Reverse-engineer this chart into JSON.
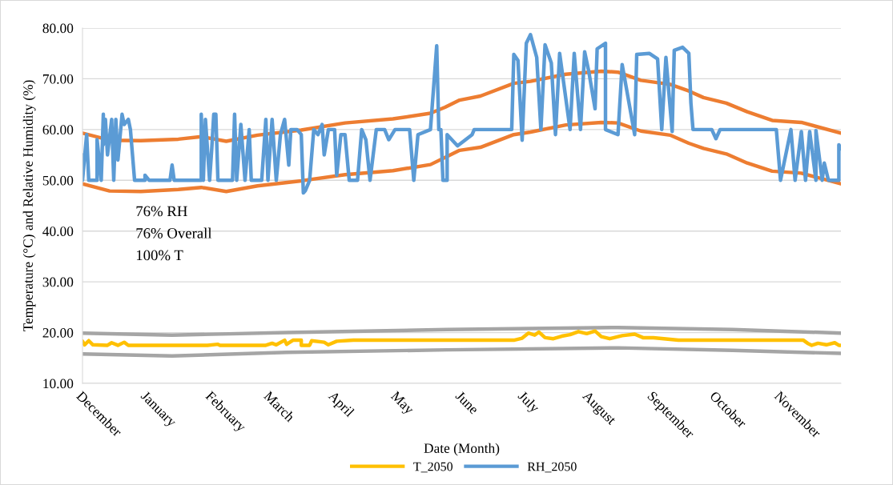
{
  "chart_data": {
    "type": "line",
    "xlabel": "Date (Month)",
    "ylabel": "Temperature (°C) and Relative Humidity (%)",
    "annotations": [
      "76% RH",
      "76% Overall",
      "100% T"
    ],
    "xlim": [
      "2049-12-01",
      "2050-11-30"
    ],
    "xticks": [
      {
        "value": "2049-12-01",
        "label": "December"
      },
      {
        "value": "2050-01-01",
        "label": "January"
      },
      {
        "value": "2050-02-01",
        "label": "February"
      },
      {
        "value": "2050-03-01",
        "label": "March"
      },
      {
        "value": "2050-04-01",
        "label": "April"
      },
      {
        "value": "2050-05-01",
        "label": "May"
      },
      {
        "value": "2050-06-01",
        "label": "June"
      },
      {
        "value": "2050-07-01",
        "label": "July"
      },
      {
        "value": "2050-08-01",
        "label": "August"
      },
      {
        "value": "2050-09-01",
        "label": "September"
      },
      {
        "value": "2050-10-01",
        "label": "October"
      },
      {
        "value": "2050-11-01",
        "label": "November"
      }
    ],
    "ylim": [
      10,
      80
    ],
    "yticks": [
      {
        "value": 10,
        "label": "10.00"
      },
      {
        "value": 20,
        "label": "20.00"
      },
      {
        "value": 30,
        "label": "30.00"
      },
      {
        "value": 40,
        "label": "40.00"
      },
      {
        "value": 50,
        "label": "50.00"
      },
      {
        "value": 60,
        "label": "60.00"
      },
      {
        "value": 70,
        "label": "70.00"
      },
      {
        "value": 80,
        "label": "80.00"
      }
    ],
    "grid": "y",
    "legend": "bottom",
    "marker": "none",
    "line_style": "solid",
    "series": [
      {
        "color": "#ed7d31",
        "x": [
          "2049-12-01",
          "2049-12-14",
          "2049-12-29",
          "2050-01-16",
          "2050-01-27",
          "2050-02-08",
          "2050-02-23",
          "2050-03-16",
          "2050-04-06",
          "2050-04-29",
          "2050-05-17",
          "2050-05-24",
          "2050-05-31",
          "2050-06-10",
          "2050-06-26",
          "2050-07-04",
          "2050-07-21",
          "2050-08-07",
          "2050-08-15",
          "2050-08-26",
          "2050-09-09",
          "2050-09-18",
          "2050-09-25",
          "2050-10-06",
          "2050-10-16",
          "2050-10-28",
          "2050-11-11",
          "2050-11-30"
        ],
        "values": [
          59.3,
          57.9,
          57.8,
          58.1,
          58.6,
          57.7,
          58.9,
          59.9,
          61.3,
          62.1,
          63.2,
          64.4,
          65.8,
          66.6,
          69.1,
          69.5,
          70.9,
          71.5,
          71.3,
          69.7,
          68.9,
          67.6,
          66.3,
          65.2,
          63.5,
          61.8,
          61.4,
          59.3
        ]
      },
      {
        "color": "#ed7d31",
        "x": [
          "2049-12-01",
          "2049-12-14",
          "2049-12-29",
          "2050-01-16",
          "2050-01-27",
          "2050-02-08",
          "2050-02-23",
          "2050-03-16",
          "2050-04-06",
          "2050-04-29",
          "2050-05-17",
          "2050-05-24",
          "2050-05-31",
          "2050-06-10",
          "2050-06-26",
          "2050-07-04",
          "2050-07-21",
          "2050-08-07",
          "2050-08-15",
          "2050-08-26",
          "2050-09-09",
          "2050-09-18",
          "2050-09-25",
          "2050-10-06",
          "2050-10-16",
          "2050-10-28",
          "2050-11-11",
          "2050-11-30"
        ],
        "values": [
          49.3,
          47.9,
          47.8,
          48.2,
          48.6,
          47.8,
          48.9,
          49.9,
          51.1,
          51.9,
          53.1,
          54.5,
          55.9,
          56.5,
          59.0,
          59.5,
          60.9,
          61.4,
          61.3,
          59.7,
          58.9,
          57.3,
          56.3,
          55.2,
          53.4,
          51.8,
          51.4,
          49.3
        ]
      },
      {
        "color": "#a5a5a5",
        "x": [
          "2049-12-01",
          "2050-01-13",
          "2050-03-09",
          "2050-05-25",
          "2050-08-15",
          "2050-10-09",
          "2050-11-30"
        ],
        "values": [
          19.9,
          19.5,
          20.0,
          20.6,
          21.0,
          20.6,
          19.9
        ]
      },
      {
        "color": "#a5a5a5",
        "x": [
          "2049-12-01",
          "2050-01-13",
          "2050-03-09",
          "2050-05-25",
          "2050-08-15",
          "2050-10-09",
          "2050-11-30"
        ],
        "values": [
          15.8,
          15.4,
          16.1,
          16.6,
          17.0,
          16.5,
          15.9
        ]
      },
      {
        "name": "T_2050",
        "color": "#ffc000",
        "x": [
          "2049-12-01",
          "2049-12-02",
          "2049-12-04",
          "2049-12-06",
          "2049-12-13",
          "2049-12-15",
          "2049-12-18",
          "2049-12-21",
          "2049-12-23",
          "2050-01-30",
          "2050-02-04",
          "2050-02-05",
          "2050-02-27",
          "2050-03-02",
          "2050-03-04",
          "2050-03-08",
          "2050-03-09",
          "2050-03-12",
          "2050-03-16",
          "2050-03-16",
          "2050-03-20",
          "2050-03-21",
          "2050-03-27",
          "2050-03-29",
          "2050-04-02",
          "2050-04-10",
          "2050-06-26",
          "2050-06-30",
          "2050-07-03",
          "2050-07-06",
          "2050-07-08",
          "2050-07-11",
          "2050-07-15",
          "2050-07-19",
          "2050-07-23",
          "2050-07-27",
          "2050-07-31",
          "2050-08-04",
          "2050-08-07",
          "2050-08-11",
          "2050-08-17",
          "2050-08-23",
          "2050-08-27",
          "2050-09-01",
          "2050-09-13",
          "2050-11-12",
          "2050-11-14",
          "2050-11-16",
          "2050-11-19",
          "2050-11-23",
          "2050-11-27",
          "2050-11-29",
          "2050-11-30"
        ],
        "values": [
          18.3,
          17.6,
          18.4,
          17.6,
          17.5,
          18.0,
          17.5,
          18.1,
          17.5,
          17.5,
          17.7,
          17.5,
          17.5,
          17.9,
          17.6,
          18.5,
          17.7,
          18.5,
          18.5,
          17.5,
          17.5,
          18.4,
          18.1,
          17.6,
          18.3,
          18.5,
          18.5,
          18.9,
          19.9,
          19.5,
          20.1,
          19.0,
          18.8,
          19.3,
          19.6,
          20.2,
          19.8,
          20.3,
          19.2,
          18.8,
          19.4,
          19.7,
          19.0,
          19.0,
          18.5,
          18.5,
          17.9,
          17.5,
          17.9,
          17.6,
          18.0,
          17.5,
          17.5
        ]
      },
      {
        "name": "RH_2050",
        "color": "#5b9bd5",
        "x": [
          "2049-12-01",
          "2049-12-01",
          "2049-12-03",
          "2049-12-04",
          "2049-12-08",
          "2049-12-08",
          "2049-12-10",
          "2049-12-11",
          "2049-12-11",
          "2049-12-12",
          "2049-12-13",
          "2049-12-15",
          "2049-12-16",
          "2049-12-17",
          "2049-12-18",
          "2049-12-20",
          "2049-12-21",
          "2049-12-23",
          "2049-12-24",
          "2049-12-26",
          "2049-12-31",
          "2049-12-31",
          "2050-01-02",
          "2050-01-12",
          "2050-01-13",
          "2050-01-14",
          "2050-01-27",
          "2050-01-27",
          "2050-01-28",
          "2050-01-29",
          "2050-01-31",
          "2050-02-01",
          "2050-02-02",
          "2050-02-03",
          "2050-02-04",
          "2050-02-11",
          "2050-02-12",
          "2050-02-13",
          "2050-02-15",
          "2050-02-17",
          "2050-02-19",
          "2050-02-20",
          "2050-02-25",
          "2050-02-27",
          "2050-02-28",
          "2050-03-02",
          "2050-03-04",
          "2050-03-06",
          "2050-03-08",
          "2050-03-10",
          "2050-03-11",
          "2050-03-14",
          "2050-03-16",
          "2050-03-17",
          "2050-03-18",
          "2050-03-20",
          "2050-03-22",
          "2050-03-24",
          "2050-03-26",
          "2050-03-27",
          "2050-03-29",
          "2050-04-01",
          "2050-04-02",
          "2050-04-04",
          "2050-04-06",
          "2050-04-08",
          "2050-04-12",
          "2050-04-14",
          "2050-04-16",
          "2050-04-18",
          "2050-04-21",
          "2050-04-25",
          "2050-04-27",
          "2050-04-30",
          "2050-05-07",
          "2050-05-09",
          "2050-05-11",
          "2050-05-17",
          "2050-05-19",
          "2050-05-20",
          "2050-05-21",
          "2050-05-22",
          "2050-05-23",
          "2050-05-25",
          "2050-05-25",
          "2050-05-30",
          "2050-06-06",
          "2050-06-07",
          "2050-06-25",
          "2050-06-26",
          "2050-06-28",
          "2050-06-30",
          "2050-07-02",
          "2050-07-04",
          "2050-07-07",
          "2050-07-09",
          "2050-07-11",
          "2050-07-14",
          "2050-07-16",
          "2050-07-18",
          "2050-07-23",
          "2050-07-25",
          "2050-07-28",
          "2050-07-30",
          "2050-08-01",
          "2050-08-04",
          "2050-08-05",
          "2050-08-09",
          "2050-08-09",
          "2050-08-15",
          "2050-08-17",
          "2050-08-23",
          "2050-08-24",
          "2050-08-30",
          "2050-09-03",
          "2050-09-05",
          "2050-09-07",
          "2050-09-10",
          "2050-09-11",
          "2050-09-15",
          "2050-09-18",
          "2050-09-19",
          "2050-09-20",
          "2050-09-29",
          "2050-10-01",
          "2050-10-03",
          "2050-10-30",
          "2050-11-01",
          "2050-11-06",
          "2050-11-08",
          "2050-11-11",
          "2050-11-13",
          "2050-11-15",
          "2050-11-18",
          "2050-11-18",
          "2050-11-21",
          "2050-11-22",
          "2050-11-24",
          "2050-11-29",
          "2050-11-29",
          "2050-11-30"
        ],
        "values": [
          55,
          50,
          59,
          50,
          50,
          58,
          50,
          63,
          57,
          62,
          55,
          62,
          50,
          62,
          54,
          63,
          61,
          62,
          60,
          50,
          50,
          51,
          50,
          50,
          53,
          50,
          50,
          63,
          50,
          62,
          50,
          56,
          63,
          63,
          50,
          50,
          63,
          50,
          61,
          50,
          60,
          50,
          50,
          62,
          50,
          62,
          50,
          59,
          62,
          53,
          60,
          60,
          59,
          47.5,
          48,
          50,
          60,
          59,
          61,
          55,
          60,
          60,
          51,
          59,
          59,
          50,
          50,
          60,
          58,
          50,
          60,
          60,
          58,
          60,
          60,
          50,
          59,
          60,
          71,
          76.5,
          60,
          60,
          50,
          50,
          59,
          56.8,
          59,
          60,
          60,
          74.8,
          73.6,
          57.9,
          77,
          78.7,
          74.2,
          60,
          76.7,
          73.1,
          59,
          75,
          60,
          75,
          60,
          75.3,
          71.4,
          64.1,
          75.9,
          77,
          60,
          59,
          72.8,
          59,
          74.8,
          75,
          73.9,
          60,
          74.2,
          59.6,
          75.6,
          76.2,
          75,
          65.2,
          60,
          60,
          58.2,
          60,
          60,
          50,
          60,
          50,
          59.6,
          50,
          59.6,
          50,
          59.8,
          50,
          53.4,
          50,
          50,
          57,
          56.2
        ]
      }
    ]
  }
}
